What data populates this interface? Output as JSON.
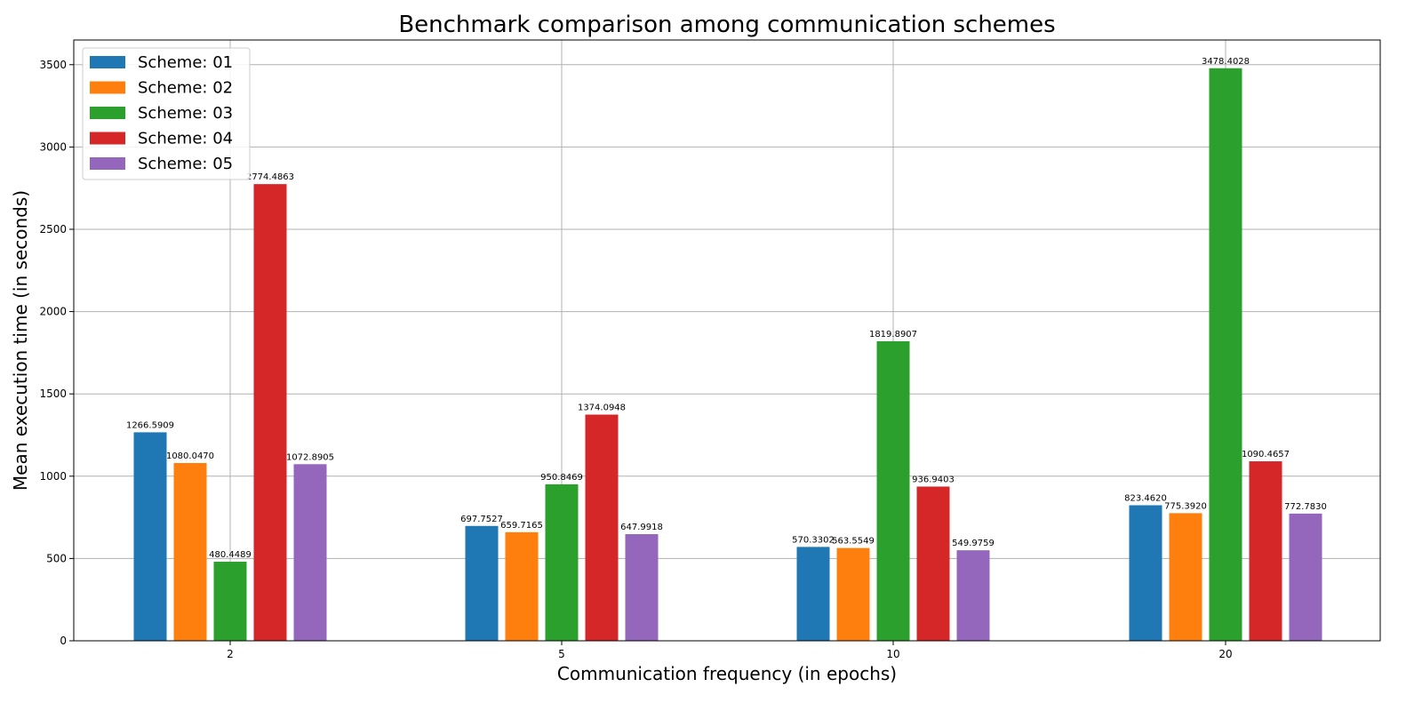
{
  "chart_data": {
    "type": "bar",
    "title": "Benchmark comparison among communication schemes",
    "xlabel": "Communication frequency (in epochs)",
    "ylabel": "Mean execution time (in seconds)",
    "categories": [
      "2",
      "5",
      "10",
      "20"
    ],
    "ylim": [
      0,
      3650
    ],
    "yticks": [
      0,
      500,
      1000,
      1500,
      2000,
      2500,
      3000,
      3500
    ],
    "grid": true,
    "legend_position": "top-left",
    "series": [
      {
        "name": "Scheme: 01",
        "color": "#1f77b4",
        "values": [
          1266.5909,
          697.7527,
          570.3302,
          823.462
        ],
        "labels": [
          "1266.5909",
          "697.7527",
          "570.3302",
          "823.4620"
        ]
      },
      {
        "name": "Scheme: 02",
        "color": "#ff7f0e",
        "values": [
          1080.047,
          659.7165,
          563.5549,
          775.392
        ],
        "labels": [
          "1080.0470",
          "659.7165",
          "563.5549",
          "775.3920"
        ]
      },
      {
        "name": "Scheme: 03",
        "color": "#2ca02c",
        "values": [
          480.4489,
          950.8469,
          1819.8907,
          3478.4028
        ],
        "labels": [
          "480.4489",
          "950.8469",
          "1819.8907",
          "3478.4028"
        ]
      },
      {
        "name": "Scheme: 04",
        "color": "#d62728",
        "values": [
          2774.4863,
          1374.0948,
          936.9403,
          1090.4657
        ],
        "labels": [
          "2774.4863",
          "1374.0948",
          "936.9403",
          "1090.4657"
        ]
      },
      {
        "name": "Scheme: 05",
        "color": "#9467bd",
        "values": [
          1072.8905,
          647.9918,
          549.9759,
          772.783
        ],
        "labels": [
          "1072.8905",
          "647.9918",
          "549.9759",
          "772.7830"
        ]
      }
    ]
  }
}
